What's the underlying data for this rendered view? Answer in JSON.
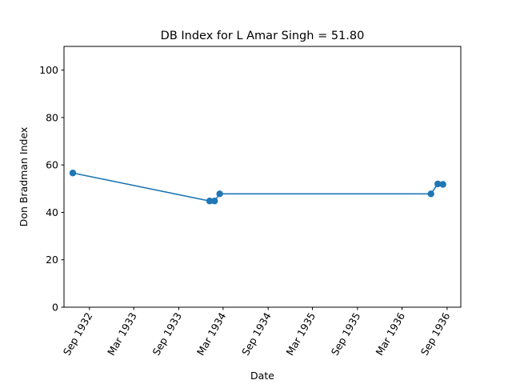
{
  "chart_data": {
    "type": "line",
    "title": "DB Index for L Amar Singh = 51.80",
    "xlabel": "Date",
    "ylabel": "Don Bradman Index",
    "x_ticks": [
      {
        "date": "1932-09-01",
        "label": "Sep 1932"
      },
      {
        "date": "1933-03-01",
        "label": "Mar 1933"
      },
      {
        "date": "1933-09-01",
        "label": "Sep 1933"
      },
      {
        "date": "1934-03-01",
        "label": "Mar 1934"
      },
      {
        "date": "1934-09-01",
        "label": "Sep 1934"
      },
      {
        "date": "1935-03-01",
        "label": "Mar 1935"
      },
      {
        "date": "1935-09-01",
        "label": "Sep 1935"
      },
      {
        "date": "1936-03-01",
        "label": "Mar 1936"
      },
      {
        "date": "1936-09-01",
        "label": "Sep 1936"
      }
    ],
    "y_ticks": [
      0,
      20,
      40,
      60,
      80,
      100
    ],
    "xlim": [
      "1932-05-20",
      "1936-10-27"
    ],
    "ylim": [
      0,
      110
    ],
    "grid": false,
    "series": [
      {
        "color": "#1f77b4",
        "points": [
          {
            "x": "1932-06-25",
            "y": 56.6
          },
          {
            "x": "1934-01-05",
            "y": 44.8
          },
          {
            "x": "1934-01-25",
            "y": 44.8
          },
          {
            "x": "1934-02-15",
            "y": 47.8
          },
          {
            "x": "1936-06-27",
            "y": 47.8
          },
          {
            "x": "1936-07-25",
            "y": 52.0
          },
          {
            "x": "1936-08-15",
            "y": 51.8
          }
        ]
      }
    ]
  }
}
